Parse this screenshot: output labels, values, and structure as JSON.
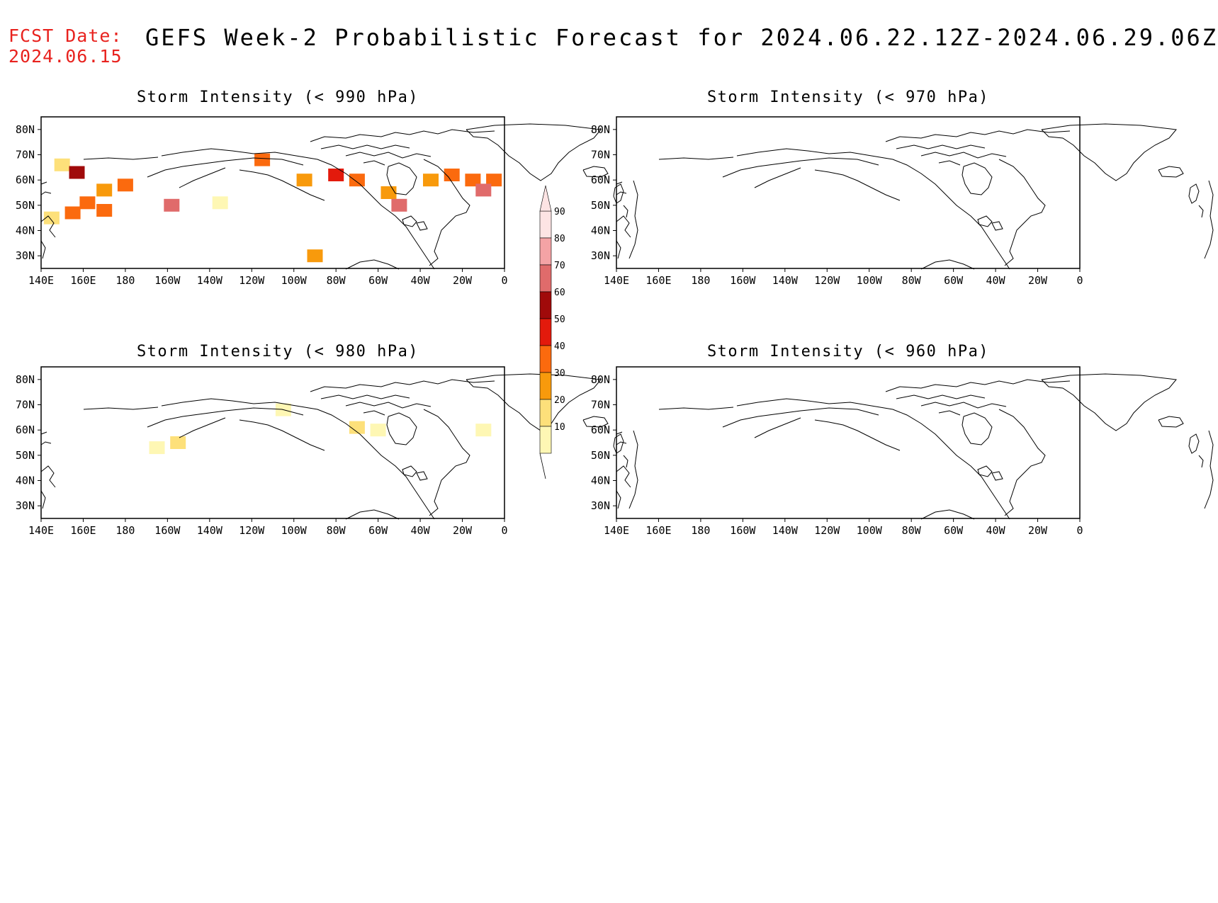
{
  "fcst_date": {
    "label": "FCST Date:",
    "value": "2024.06.15"
  },
  "title": "GEFS Week-2 Probabilistic Forecast for 2024.06.22.12Z-2024.06.29.06Z",
  "panels": [
    {
      "id": "p990",
      "title": "Storm Intensity (< 990 hPa)"
    },
    {
      "id": "p970",
      "title": "Storm Intensity (< 970 hPa)"
    },
    {
      "id": "p980",
      "title": "Storm Intensity (< 980 hPa)"
    },
    {
      "id": "p960",
      "title": "Storm Intensity (< 960 hPa)"
    }
  ],
  "axes": {
    "lon_ticks": [
      "140E",
      "160E",
      "180",
      "160W",
      "140W",
      "120W",
      "100W",
      "80W",
      "60W",
      "40W",
      "20W",
      "0"
    ],
    "lat_ticks": [
      "80N",
      "70N",
      "60N",
      "50N",
      "40N",
      "30N"
    ]
  },
  "colorbar": {
    "labels": [
      "90",
      "80",
      "70",
      "60",
      "50",
      "40",
      "30",
      "20",
      "10"
    ],
    "colors": [
      "#fde4e4",
      "#f4a3a5",
      "#e06b6b",
      "#a00a0a",
      "#e31a0c",
      "#fb6a0e",
      "#f89a0c",
      "#fde07a",
      "#fef7b4"
    ]
  },
  "chart_data": {
    "type": "heatmap",
    "units": "probability (%)",
    "lon_range": [
      "140E",
      "0"
    ],
    "lat_range": [
      "25N",
      "85N"
    ],
    "panels": [
      {
        "threshold_hPa": 990,
        "cells": [
          {
            "lon": "150E",
            "lat": "66N",
            "prob": 20
          },
          {
            "lon": "157E",
            "lat": "63N",
            "prob": 65
          },
          {
            "lon": "170E",
            "lat": "56N",
            "prob": 35
          },
          {
            "lon": "180",
            "lat": "58N",
            "prob": 40
          },
          {
            "lon": "162E",
            "lat": "51N",
            "prob": 40
          },
          {
            "lon": "155E",
            "lat": "47N",
            "prob": 40
          },
          {
            "lon": "170E",
            "lat": "48N",
            "prob": 40
          },
          {
            "lon": "158W",
            "lat": "50N",
            "prob": 70
          },
          {
            "lon": "145E",
            "lat": "45N",
            "prob": 20
          },
          {
            "lon": "135W",
            "lat": "51N",
            "prob": 15
          },
          {
            "lon": "115W",
            "lat": "68N",
            "prob": 45
          },
          {
            "lon": "95W",
            "lat": "60N",
            "prob": 35
          },
          {
            "lon": "80W",
            "lat": "62N",
            "prob": 55
          },
          {
            "lon": "70W",
            "lat": "60N",
            "prob": 40
          },
          {
            "lon": "55W",
            "lat": "55N",
            "prob": 30
          },
          {
            "lon": "50W",
            "lat": "50N",
            "prob": 70
          },
          {
            "lon": "35W",
            "lat": "60N",
            "prob": 30
          },
          {
            "lon": "25W",
            "lat": "62N",
            "prob": 45
          },
          {
            "lon": "15W",
            "lat": "60N",
            "prob": 45
          },
          {
            "lon": "5W",
            "lat": "60N",
            "prob": 40
          },
          {
            "lon": "10W",
            "lat": "56N",
            "prob": 70
          },
          {
            "lon": "90W",
            "lat": "30N",
            "prob": 30
          }
        ]
      },
      {
        "threshold_hPa": 970,
        "cells": []
      },
      {
        "threshold_hPa": 980,
        "cells": [
          {
            "lon": "105W",
            "lat": "68N",
            "prob": 15
          },
          {
            "lon": "70W",
            "lat": "61N",
            "prob": 20
          },
          {
            "lon": "60W",
            "lat": "60N",
            "prob": 15
          },
          {
            "lon": "155W",
            "lat": "55N",
            "prob": 20
          },
          {
            "lon": "165W",
            "lat": "53N",
            "prob": 15
          },
          {
            "lon": "10W",
            "lat": "60N",
            "prob": 10
          }
        ]
      },
      {
        "threshold_hPa": 960,
        "cells": []
      }
    ]
  }
}
